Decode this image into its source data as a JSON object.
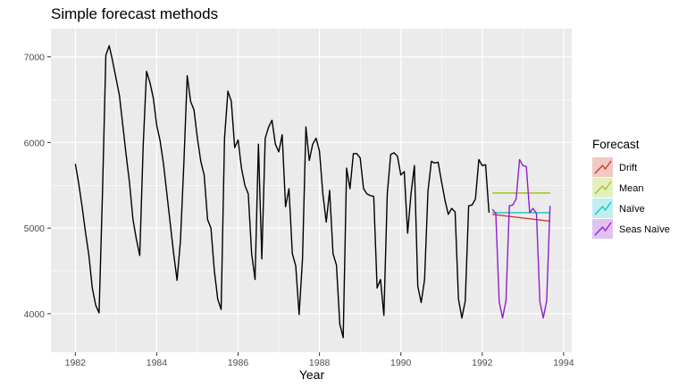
{
  "chart_data": {
    "type": "line",
    "title": "Simple forecast methods",
    "xlabel": "Year",
    "ylabel": "",
    "xlim": [
      1981.4,
      1994.2
    ],
    "ylim": [
      3550,
      7330
    ],
    "x_ticks": [
      1982,
      1984,
      1986,
      1988,
      1990,
      1992,
      1994
    ],
    "y_ticks": [
      4000,
      5000,
      6000,
      7000
    ],
    "grid": true,
    "legend_position": "right",
    "colors": {
      "panel_bg": "#ebebeb",
      "grid_major": "#ffffff",
      "observed": "#000000",
      "Drift": "#cc3b2c",
      "Mean": "#a3c21a",
      "Naïve": "#19c2c2",
      "Seas Naïve": "#8e1fcf"
    },
    "observed": {
      "start": 1982.0,
      "step": 0.08333,
      "values": [
        5750,
        5520,
        5250,
        4950,
        4680,
        4300,
        4100,
        4010,
        5400,
        7020,
        7130,
        6950,
        6750,
        6550,
        6200,
        5850,
        5520,
        5100,
        4870,
        4680,
        5950,
        6830,
        6700,
        6520,
        6200,
        6020,
        5750,
        5400,
        5050,
        4700,
        4390,
        4850,
        5750,
        6780,
        6480,
        6380,
        6050,
        5780,
        5620,
        5100,
        5000,
        4500,
        4170,
        4050,
        6050,
        6600,
        6480,
        5940,
        6030,
        5700,
        5500,
        5400,
        4700,
        4400,
        5980,
        4640,
        6050,
        6180,
        6260,
        5980,
        5890,
        6090,
        5250,
        5460,
        4700,
        4560,
        3990,
        4640,
        6180,
        5790,
        5980,
        6050,
        5900,
        5400,
        5070,
        5440,
        4700,
        4570,
        3880,
        3720,
        5700,
        5460,
        5870,
        5870,
        5820,
        5460,
        5400,
        5380,
        5370,
        4300,
        4400,
        3980,
        5400,
        5860,
        5880,
        5840,
        5620,
        5660,
        4940,
        5400,
        5730,
        4320,
        4130,
        4400,
        5430,
        5780,
        5760,
        5770,
        5540,
        5330,
        5160,
        5230,
        5190,
        4170,
        3950,
        4150,
        5260,
        5270,
        5340,
        5800,
        5730,
        5740,
        5180
      ]
    },
    "series": [
      {
        "name": "Drift",
        "x": [
          1992.25,
          1993.67
        ],
        "values": [
          5160,
          5080
        ]
      },
      {
        "name": "Mean",
        "x": [
          1992.25,
          1993.67
        ],
        "values": [
          5410,
          5410
        ]
      },
      {
        "name": "Naïve",
        "x": [
          1992.25,
          1993.67
        ],
        "values": [
          5180,
          5180
        ]
      },
      {
        "name": "Seas Naïve",
        "start": 1992.25,
        "step": 0.08333,
        "values": [
          5220,
          5170,
          4140,
          3950,
          4150,
          5260,
          5270,
          5340,
          5800,
          5730,
          5720,
          5180,
          5230,
          5170,
          4140,
          3950,
          4150,
          5260
        ]
      }
    ],
    "legend": {
      "title": "Forecast",
      "items": [
        "Drift",
        "Mean",
        "Naïve",
        "Seas Naïve"
      ]
    }
  }
}
